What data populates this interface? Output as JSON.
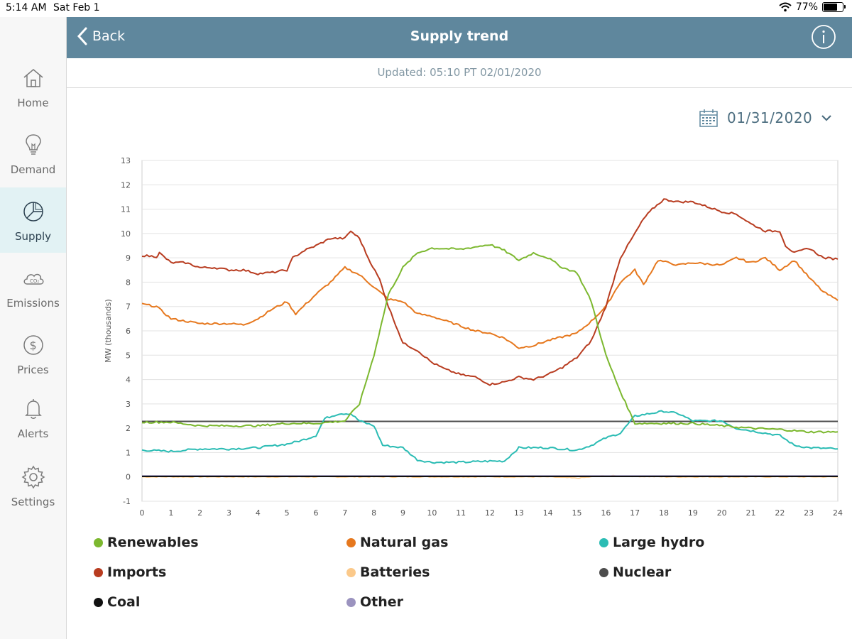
{
  "status": {
    "time": "5:14 AM",
    "date": "Sat Feb 1",
    "battery": "77%",
    "battery_level": 0.77
  },
  "sidebar": {
    "items": [
      {
        "label": "Home",
        "icon": "home-icon",
        "active": false
      },
      {
        "label": "Demand",
        "icon": "lightbulb-icon",
        "active": false
      },
      {
        "label": "Supply",
        "icon": "pie-chart-icon",
        "active": true
      },
      {
        "label": "Emissions",
        "icon": "co2-cloud-icon",
        "active": false
      },
      {
        "label": "Prices",
        "icon": "dollar-icon",
        "active": false
      },
      {
        "label": "Alerts",
        "icon": "bell-icon",
        "active": false
      },
      {
        "label": "Settings",
        "icon": "gear-icon",
        "active": false
      }
    ]
  },
  "header": {
    "back_label": "Back",
    "title": "Supply trend",
    "info_icon": "info-icon"
  },
  "updated": "Updated: 05:10 PT 02/01/2020",
  "date_picker": {
    "value": "01/31/2020",
    "icon": "calendar-icon"
  },
  "colors": {
    "header": "#5f879d",
    "sidebar_active": "#e2f2f4",
    "accent_text": "#4e6f81"
  },
  "chart_data": {
    "type": "line",
    "ylabel": "MW (thousands)",
    "xlim": [
      0,
      24
    ],
    "ylim": [
      -1,
      13
    ],
    "xticks": [
      "0",
      "1",
      "2",
      "3",
      "4",
      "5",
      "6",
      "7",
      "8",
      "9",
      "10",
      "11",
      "12",
      "13",
      "14",
      "15",
      "16",
      "17",
      "18",
      "19",
      "20",
      "21",
      "22",
      "23",
      "24"
    ],
    "yticks": [
      "-1",
      "0",
      "1",
      "2",
      "3",
      "4",
      "5",
      "6",
      "7",
      "8",
      "9",
      "10",
      "11",
      "12",
      "13"
    ],
    "grid": true,
    "legend_position": "bottom",
    "series": [
      {
        "name": "Renewables",
        "color": "#7cb82f",
        "points": [
          [
            0,
            2.25
          ],
          [
            1,
            2.25
          ],
          [
            2,
            2.1
          ],
          [
            3,
            2.1
          ],
          [
            4,
            2.1
          ],
          [
            5,
            2.2
          ],
          [
            6,
            2.2
          ],
          [
            7,
            2.3
          ],
          [
            7.5,
            3.0
          ],
          [
            8,
            5.0
          ],
          [
            8.5,
            7.5
          ],
          [
            9,
            8.6
          ],
          [
            9.5,
            9.2
          ],
          [
            10,
            9.4
          ],
          [
            11,
            9.35
          ],
          [
            12,
            9.55
          ],
          [
            12.5,
            9.3
          ],
          [
            13,
            8.9
          ],
          [
            13.5,
            9.2
          ],
          [
            14,
            9.0
          ],
          [
            14.5,
            8.6
          ],
          [
            15,
            8.4
          ],
          [
            15.5,
            7.2
          ],
          [
            16,
            5.0
          ],
          [
            16.5,
            3.5
          ],
          [
            17,
            2.2
          ],
          [
            18,
            2.2
          ],
          [
            19,
            2.2
          ],
          [
            20,
            2.1
          ],
          [
            21,
            2.0
          ],
          [
            22,
            1.95
          ],
          [
            23,
            1.85
          ],
          [
            24,
            1.85
          ]
        ]
      },
      {
        "name": "Natural gas",
        "color": "#e6781e",
        "points": [
          [
            0,
            7.1
          ],
          [
            0.5,
            7.0
          ],
          [
            1,
            6.5
          ],
          [
            2,
            6.3
          ],
          [
            3,
            6.3
          ],
          [
            3.5,
            6.25
          ],
          [
            4,
            6.5
          ],
          [
            4.5,
            6.9
          ],
          [
            5,
            7.2
          ],
          [
            5.3,
            6.7
          ],
          [
            6,
            7.5
          ],
          [
            6.5,
            8.0
          ],
          [
            7,
            8.6
          ],
          [
            7.5,
            8.3
          ],
          [
            8,
            7.8
          ],
          [
            8.5,
            7.3
          ],
          [
            9,
            7.2
          ],
          [
            9.5,
            6.7
          ],
          [
            10,
            6.6
          ],
          [
            11,
            6.2
          ],
          [
            11.5,
            6.0
          ],
          [
            12,
            5.9
          ],
          [
            12.5,
            5.7
          ],
          [
            13,
            5.3
          ],
          [
            13.5,
            5.4
          ],
          [
            14,
            5.6
          ],
          [
            15,
            5.9
          ],
          [
            15.5,
            6.4
          ],
          [
            16,
            7.0
          ],
          [
            16.5,
            8.0
          ],
          [
            17,
            8.5
          ],
          [
            17.3,
            7.9
          ],
          [
            17.8,
            8.9
          ],
          [
            18.5,
            8.7
          ],
          [
            19,
            8.8
          ],
          [
            20,
            8.7
          ],
          [
            20.5,
            9.0
          ],
          [
            21,
            8.8
          ],
          [
            21.5,
            9.0
          ],
          [
            22,
            8.5
          ],
          [
            22.5,
            8.9
          ],
          [
            23,
            8.2
          ],
          [
            23.5,
            7.6
          ],
          [
            24,
            7.25
          ]
        ]
      },
      {
        "name": "Large hydro",
        "color": "#2bbcb4",
        "points": [
          [
            0,
            1.1
          ],
          [
            1,
            1.05
          ],
          [
            2,
            1.15
          ],
          [
            3,
            1.15
          ],
          [
            4,
            1.2
          ],
          [
            5,
            1.35
          ],
          [
            5.5,
            1.5
          ],
          [
            6,
            1.7
          ],
          [
            6.3,
            2.4
          ],
          [
            6.8,
            2.6
          ],
          [
            7.2,
            2.6
          ],
          [
            7.5,
            2.3
          ],
          [
            8,
            2.1
          ],
          [
            8.3,
            1.3
          ],
          [
            9,
            1.2
          ],
          [
            9.5,
            0.7
          ],
          [
            10,
            0.6
          ],
          [
            11,
            0.6
          ],
          [
            12,
            0.65
          ],
          [
            12.5,
            0.65
          ],
          [
            13,
            1.2
          ],
          [
            14,
            1.2
          ],
          [
            15,
            1.1
          ],
          [
            15.5,
            1.3
          ],
          [
            16,
            1.6
          ],
          [
            16.5,
            1.8
          ],
          [
            17,
            2.5
          ],
          [
            18,
            2.7
          ],
          [
            18.5,
            2.6
          ],
          [
            19,
            2.3
          ],
          [
            20,
            2.3
          ],
          [
            20.5,
            2.0
          ],
          [
            21,
            1.9
          ],
          [
            21.5,
            1.8
          ],
          [
            22,
            1.7
          ],
          [
            22.5,
            1.3
          ],
          [
            23,
            1.2
          ],
          [
            24,
            1.15
          ]
        ]
      },
      {
        "name": "Imports",
        "color": "#b83c20",
        "points": [
          [
            0,
            9.1
          ],
          [
            0.5,
            9.05
          ],
          [
            0.6,
            9.2
          ],
          [
            1,
            8.8
          ],
          [
            1.5,
            8.8
          ],
          [
            2,
            8.6
          ],
          [
            2.5,
            8.6
          ],
          [
            3,
            8.5
          ],
          [
            3.5,
            8.5
          ],
          [
            4,
            8.35
          ],
          [
            4.5,
            8.4
          ],
          [
            5,
            8.5
          ],
          [
            5.2,
            9.0
          ],
          [
            5.6,
            9.3
          ],
          [
            6,
            9.5
          ],
          [
            6.5,
            9.8
          ],
          [
            7,
            9.8
          ],
          [
            7.2,
            10.1
          ],
          [
            7.5,
            9.8
          ],
          [
            7.8,
            9.0
          ],
          [
            8.2,
            8.1
          ],
          [
            8.5,
            7.0
          ],
          [
            9,
            5.5
          ],
          [
            9.5,
            5.2
          ],
          [
            10,
            4.7
          ],
          [
            10.5,
            4.4
          ],
          [
            11,
            4.2
          ],
          [
            11.5,
            4.1
          ],
          [
            12,
            3.8
          ],
          [
            12.5,
            3.9
          ],
          [
            13,
            4.1
          ],
          [
            13.5,
            4.0
          ],
          [
            14,
            4.2
          ],
          [
            14.5,
            4.5
          ],
          [
            15,
            4.9
          ],
          [
            15.5,
            5.6
          ],
          [
            16,
            7.0
          ],
          [
            16.5,
            9.0
          ],
          [
            17,
            10.0
          ],
          [
            17.3,
            10.6
          ],
          [
            17.6,
            11.0
          ],
          [
            18,
            11.4
          ],
          [
            18.5,
            11.3
          ],
          [
            19,
            11.3
          ],
          [
            19.5,
            11.1
          ],
          [
            20,
            10.9
          ],
          [
            20.5,
            10.8
          ],
          [
            21,
            10.4
          ],
          [
            21.5,
            10.1
          ],
          [
            22,
            10.1
          ],
          [
            22.2,
            9.5
          ],
          [
            22.5,
            9.2
          ],
          [
            23,
            9.4
          ],
          [
            23.5,
            9.0
          ],
          [
            24,
            8.95
          ]
        ]
      },
      {
        "name": "Batteries",
        "color": "#fbc98a",
        "points": [
          [
            0,
            0.0
          ],
          [
            2,
            0.0
          ],
          [
            4,
            0.0
          ],
          [
            6,
            0.0
          ],
          [
            8,
            0.0
          ],
          [
            10,
            0.0
          ],
          [
            12,
            0.0
          ],
          [
            14,
            0.0
          ],
          [
            15,
            -0.05
          ],
          [
            16,
            0.05
          ],
          [
            18,
            0.0
          ],
          [
            20,
            0.0
          ],
          [
            22,
            0.0
          ],
          [
            24,
            0.0
          ]
        ]
      },
      {
        "name": "Nuclear",
        "color": "#4d4d4d",
        "points": [
          [
            0,
            2.28
          ],
          [
            24,
            2.28
          ]
        ]
      },
      {
        "name": "Coal",
        "color": "#111111",
        "points": [
          [
            0,
            0.02
          ],
          [
            24,
            0.02
          ]
        ]
      },
      {
        "name": "Other",
        "color": "#9b93bf",
        "points": [
          [
            0,
            0.04
          ],
          [
            24,
            0.04
          ]
        ]
      }
    ]
  }
}
